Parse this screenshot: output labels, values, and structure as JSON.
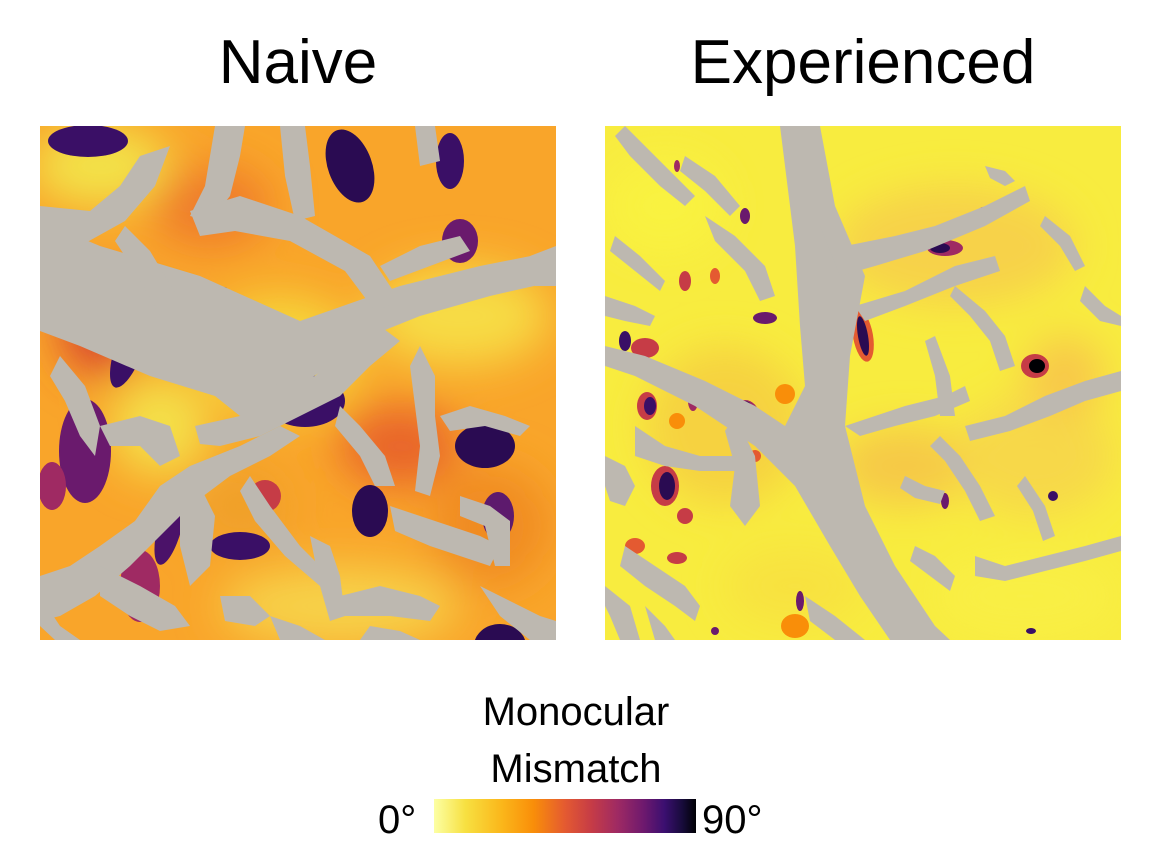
{
  "panels": {
    "naive": {
      "title": "Naive"
    },
    "experienced": {
      "title": "Experienced"
    }
  },
  "colorbar": {
    "title_line1": "Monocular",
    "title_line2": "Mismatch",
    "min_label": "0°",
    "max_label": "90°",
    "colormap": "inferno-reversed",
    "colors": [
      "#fcffa4",
      "#f98e09",
      "#c63c46",
      "#6e196e",
      "#000004"
    ]
  },
  "mask_color": "#bdb8b0"
}
